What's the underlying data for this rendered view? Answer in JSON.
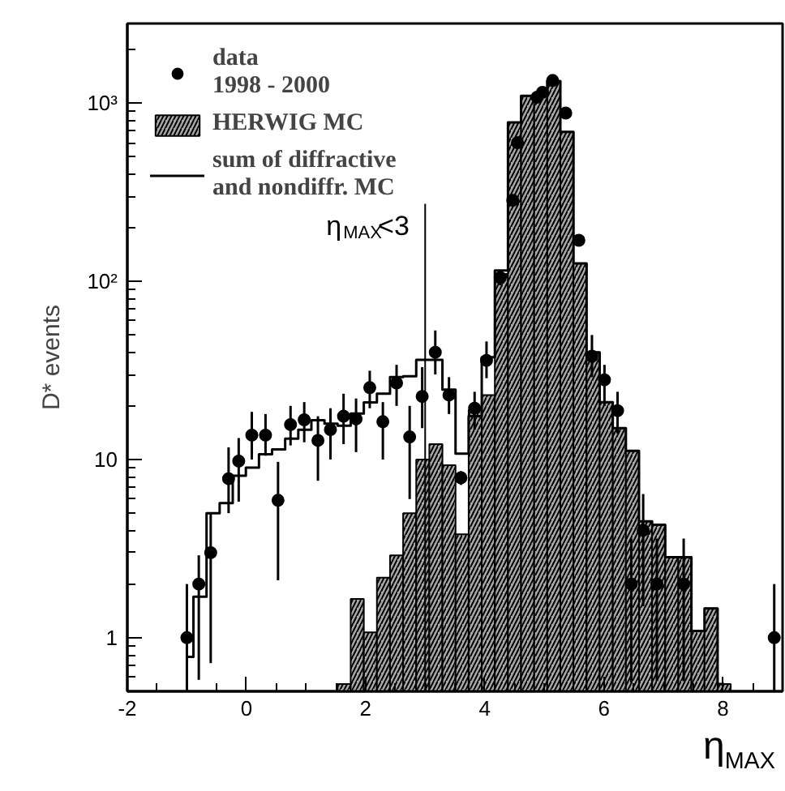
{
  "chart_data": {
    "type": "histogram",
    "xlabel": "η$_{MAX}$",
    "ylabel": "D* events",
    "xlim": [
      -2,
      9
    ],
    "xticks": [
      -2,
      0,
      2,
      4,
      6,
      8
    ],
    "ylim": [
      0.5,
      2800
    ],
    "yticks": [
      {
        "value": 1,
        "label": "1"
      },
      {
        "value": 10,
        "label": "10"
      },
      {
        "value": 100,
        "label": "10²"
      },
      {
        "value": 1000,
        "label": "10³"
      }
    ],
    "log": "y",
    "grid": false,
    "legend": "top left",
    "ref_lines": [
      {
        "axis": "x",
        "value": 3,
        "label": "η$_{MAX}$<3"
      }
    ],
    "series": [
      {
        "name": "HERWIG MC",
        "color": "#a8a8a8",
        "bins": [
          1.53,
          1.75,
          1.97,
          2.19,
          2.41,
          2.63,
          2.85,
          3.07,
          3.29,
          3.51,
          3.73,
          3.95,
          4.17,
          4.39,
          4.61,
          4.83,
          5.05,
          5.27,
          5.49,
          5.71,
          5.93,
          6.15,
          6.37,
          6.59,
          6.81,
          7.03,
          7.25,
          7.47,
          7.69,
          7.91,
          8.13
        ],
        "values": [
          0.55,
          1.65,
          1.07,
          2.17,
          2.9,
          5.0,
          10,
          12.2,
          9.3,
          3.8,
          19,
          23,
          110,
          780,
          1100,
          1100,
          1330,
          690,
          126,
          40,
          21,
          15,
          11.2,
          4.5,
          4.3,
          2.83,
          2.83,
          1.09,
          1.46,
          0.55
        ]
      },
      {
        "name": "sum of diffractive\nand nondiffr. MC",
        "type": "step",
        "color": "#000000",
        "x": [
          -1.0,
          -0.78,
          -0.56,
          -0.34,
          -0.12,
          0.1,
          0.32,
          0.54,
          0.76,
          0.98,
          1.2,
          1.42,
          1.64,
          1.86,
          2.08,
          2.3,
          2.52,
          2.74,
          2.96,
          3.18,
          3.4,
          3.62,
          3.84,
          4.06,
          4.28,
          4.5,
          4.72,
          4.94,
          5.16,
          5.38,
          5.6,
          5.82,
          6.04,
          6.26,
          6.48,
          6.7,
          6.92,
          7.14,
          7.36,
          7.58,
          7.8,
          8.02
        ],
        "values": [
          0.78,
          1.7,
          5.0,
          5.7,
          8.1,
          9.0,
          10.7,
          11.4,
          13.1,
          14.7,
          16.6,
          15.9,
          15.5,
          18.1,
          20.9,
          23.4,
          29,
          29.3,
          36.3,
          36.3,
          24.7,
          10.8,
          17.5,
          37.5,
          115,
          780,
          1100,
          1100,
          1330,
          690,
          126,
          40,
          21,
          15,
          11.2,
          4.5,
          4.3,
          2.83,
          2.83,
          1.09,
          1.46,
          0.55
        ]
      },
      {
        "name": "data\n1998 - 2000",
        "type": "scatter",
        "color": "#000000",
        "marker": "circle",
        "x": [
          -1.0,
          -0.8,
          -0.6,
          -0.3,
          -0.13,
          0.09,
          0.32,
          0.53,
          0.74,
          0.97,
          1.2,
          1.41,
          1.63,
          1.84,
          2.07,
          2.29,
          2.52,
          2.74,
          2.95,
          3.17,
          3.4,
          3.6,
          3.83,
          4.03,
          4.26,
          4.47,
          4.55,
          4.88,
          4.97,
          5.14,
          5.36,
          5.58,
          5.8,
          6.01,
          6.23,
          6.46,
          6.66,
          6.89,
          7.34,
          8.86
        ],
        "values": [
          1.0,
          2.0,
          3.0,
          7.8,
          9.8,
          13.7,
          13.7,
          5.9,
          15.7,
          16.7,
          12.8,
          14.7,
          17.5,
          16.9,
          25.3,
          16.3,
          26.9,
          13.4,
          22.6,
          40,
          23,
          7.9,
          19.4,
          36,
          105,
          285,
          600,
          1080,
          1150,
          1340,
          880,
          170,
          38,
          28,
          18.8,
          2.0,
          4.0,
          2.0,
          2.0,
          1.0
        ],
        "errors": [
          [
            0.5,
            2.0
          ],
          [
            0.58,
            2.9
          ],
          [
            0.72,
            5.0
          ],
          [
            5.0,
            11.7
          ],
          [
            5.8,
            13.2
          ],
          [
            10,
            18.5
          ],
          [
            10.5,
            18
          ],
          [
            2.1,
            9.7
          ],
          [
            12,
            20
          ],
          [
            12.5,
            21
          ],
          [
            7.6,
            17.5
          ],
          [
            10,
            19.4
          ],
          [
            12.2,
            23.4
          ],
          [
            11,
            22
          ],
          [
            19.4,
            31.5
          ],
          [
            10,
            21
          ],
          [
            20,
            34
          ],
          [
            6.0,
            20
          ],
          [
            15,
            33
          ],
          [
            30,
            53
          ],
          [
            18,
            29
          ],
          [
            7.2,
            8.6
          ],
          [
            14.7,
            24
          ],
          [
            28.6,
            46
          ],
          [
            95,
            115
          ],
          null,
          null,
          null,
          null,
          null,
          null,
          null,
          [
            29,
            50
          ],
          [
            20,
            34
          ],
          [
            14,
            24
          ],
          [
            0.56,
            3.6
          ],
          [
            1.5,
            6.4
          ],
          [
            0.57,
            3.6
          ],
          [
            0.57,
            3.6
          ],
          [
            0.5,
            2.0
          ]
        ]
      }
    ]
  }
}
